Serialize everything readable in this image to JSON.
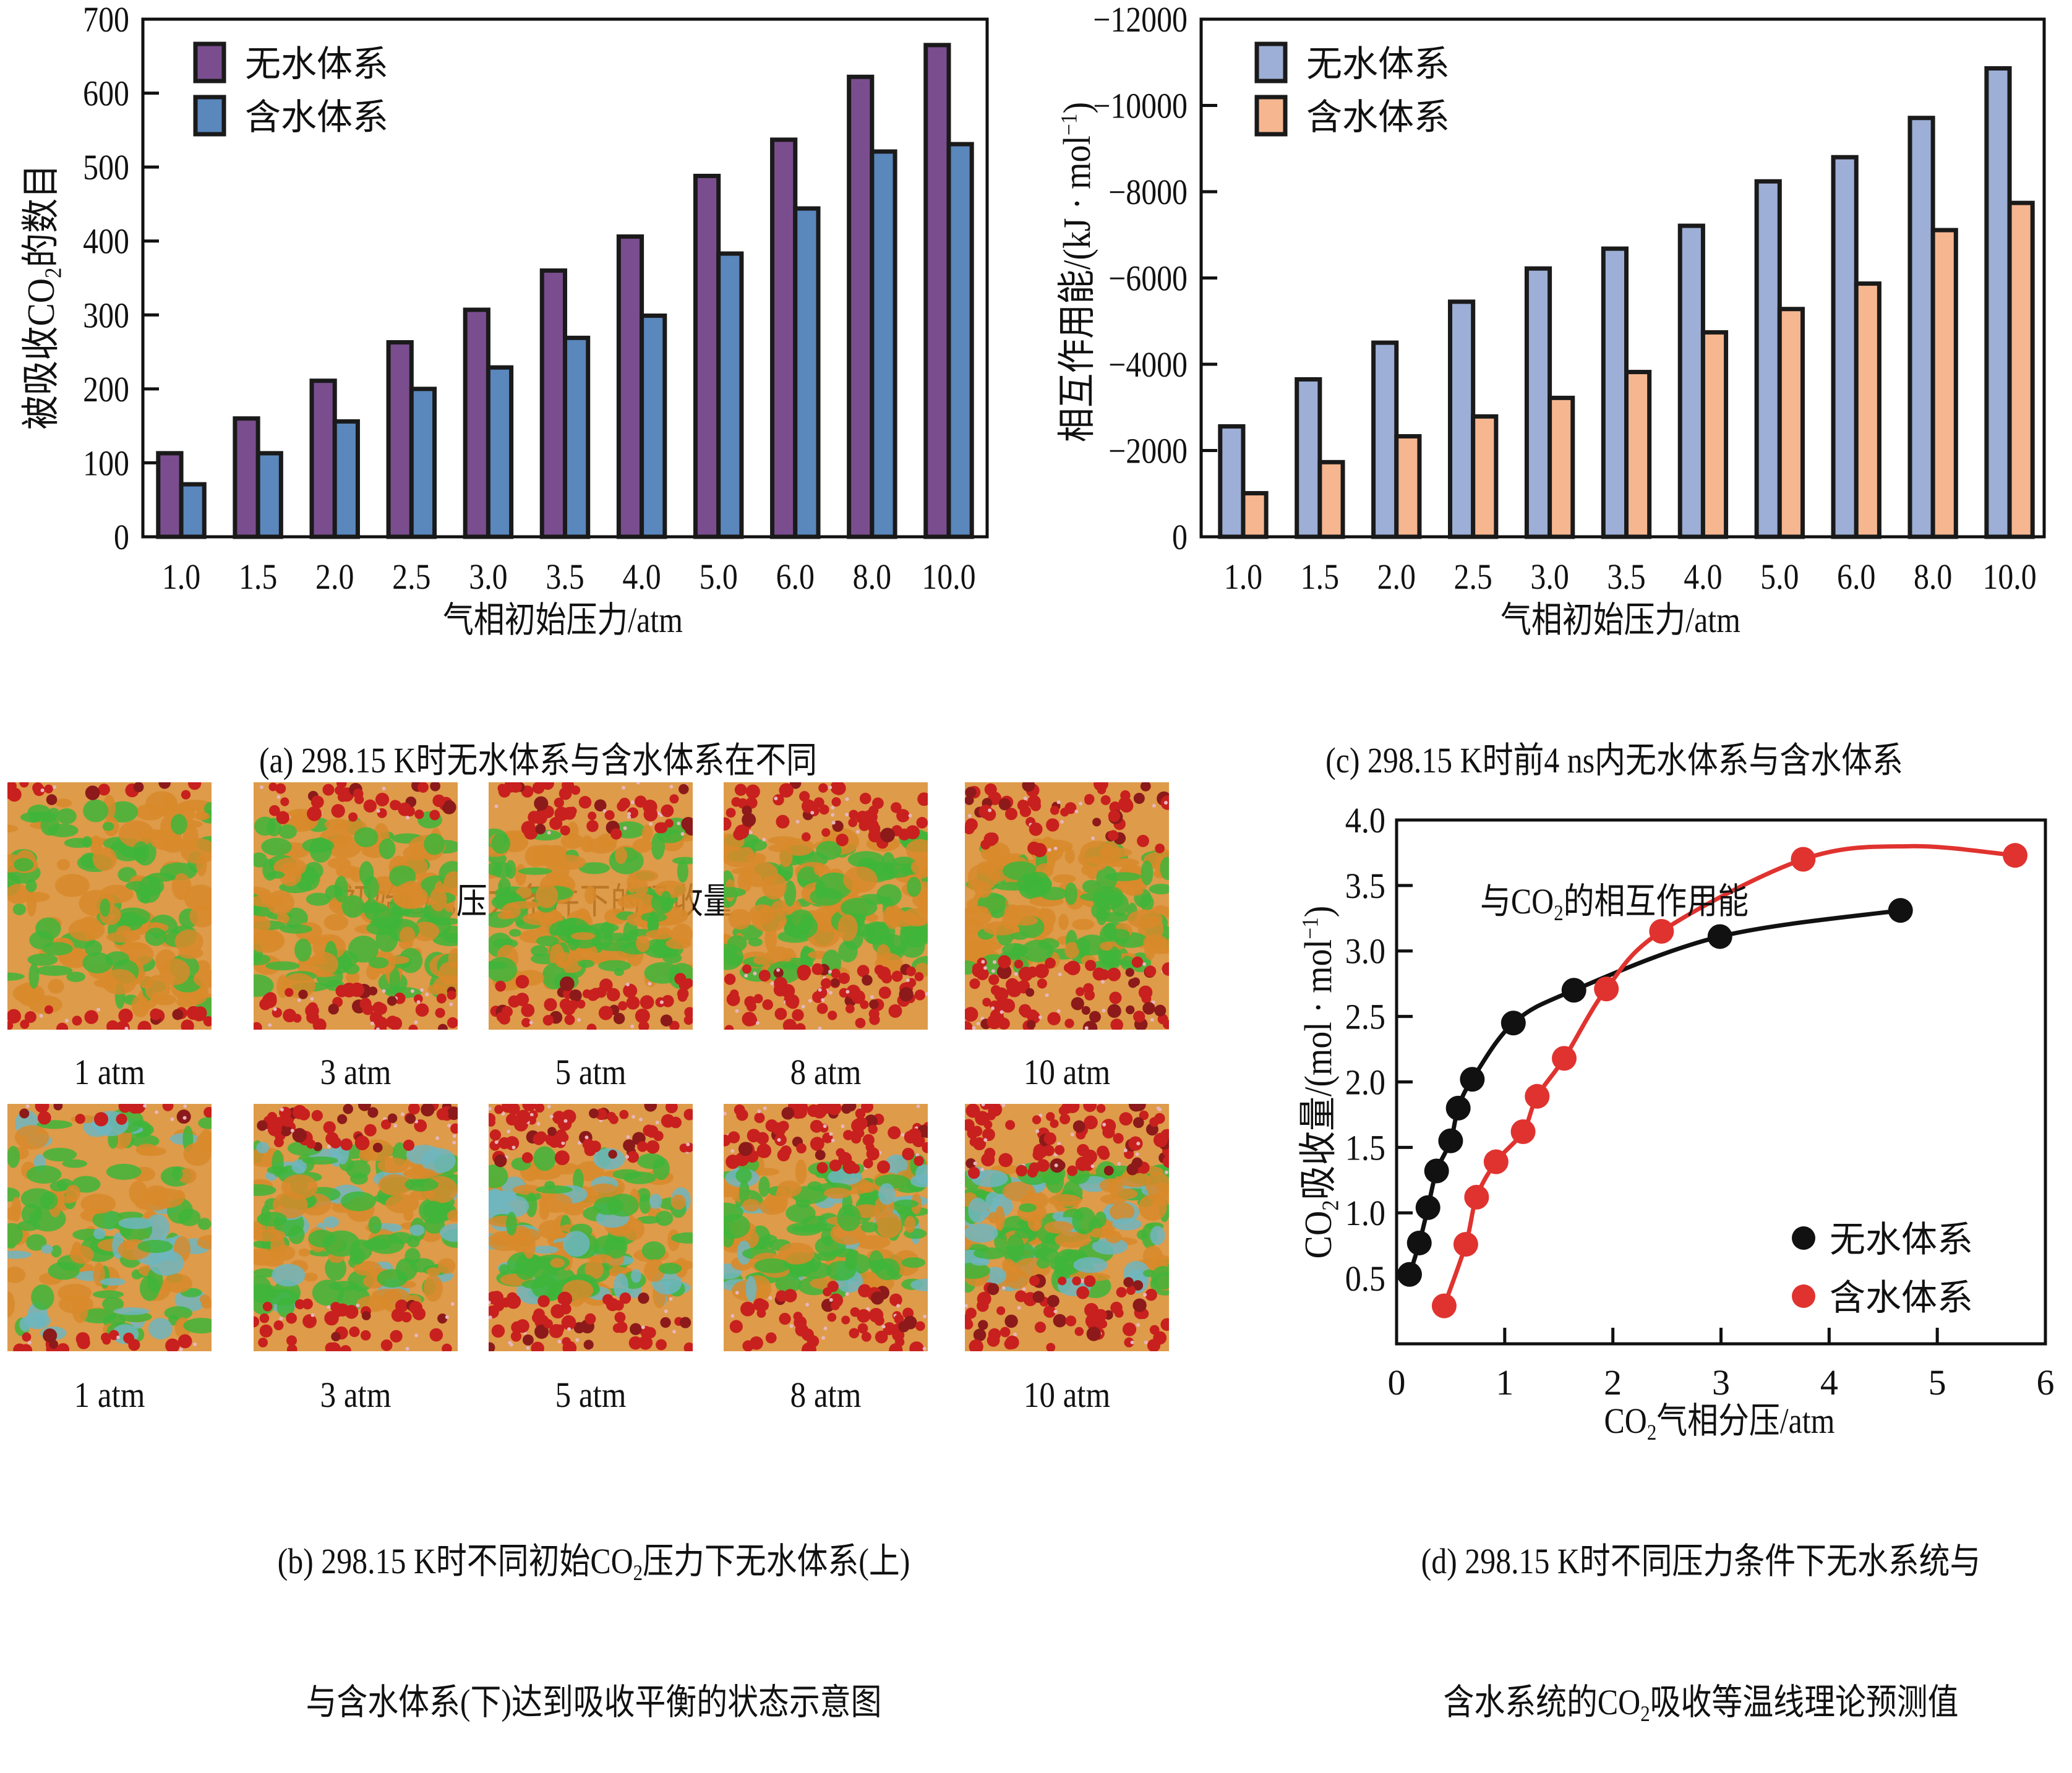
{
  "figure": {
    "panels": [
      "a",
      "b",
      "c",
      "d"
    ]
  },
  "chart_data": [
    {
      "id": "a",
      "type": "bar",
      "title": "",
      "caption_line1": "(a) 298.15 K时无水体系与含水体系在不同",
      "caption_line2_pre": "初始CO",
      "caption_line2_sub": "2",
      "caption_line2_post": "压力条件下的吸收量",
      "xlabel": "气相初始压力/atm",
      "ylabel_pre": "被吸收CO",
      "ylabel_sub": "2",
      "ylabel_post": "的数目",
      "categories": [
        "1.0",
        "1.5",
        "2.0",
        "2.5",
        "3.0",
        "3.5",
        "4.0",
        "5.0",
        "6.0",
        "8.0",
        "10.0"
      ],
      "ylim": [
        0,
        700
      ],
      "yticks": [
        0,
        100,
        200,
        300,
        400,
        500,
        600,
        700
      ],
      "ytick_labels": [
        "0",
        "100",
        "200",
        "300",
        "400",
        "500",
        "600",
        "700"
      ],
      "grid": false,
      "legend_position": "top-left",
      "series": [
        {
          "name": "无水体系",
          "color": "#7A4E8E",
          "values": [
            113,
            160,
            211,
            263,
            307,
            360,
            406,
            488,
            537,
            622,
            665
          ]
        },
        {
          "name": "含水体系",
          "color": "#5A87BC",
          "values": [
            71,
            113,
            156,
            200,
            229,
            269,
            299,
            383,
            444,
            521,
            531
          ]
        }
      ]
    },
    {
      "id": "c",
      "type": "bar",
      "title": "",
      "caption_line1": "(c) 298.15 K时前4 ns内无水体系与含水体系",
      "caption_line2_pre": "与CO",
      "caption_line2_sub": "2",
      "caption_line2_post": "的相互作用能",
      "xlabel": "气相初始压力/atm",
      "ylabel_pre": "相互作用能/(kJ · mol",
      "ylabel_sup": "−1",
      "ylabel_post": ")",
      "categories": [
        "1.0",
        "1.5",
        "2.0",
        "2.5",
        "3.0",
        "3.5",
        "4.0",
        "5.0",
        "6.0",
        "8.0",
        "10.0"
      ],
      "ylim": [
        0,
        -12000
      ],
      "yticks": [
        0,
        -2000,
        -4000,
        -6000,
        -8000,
        -10000,
        -12000
      ],
      "ytick_labels": [
        "0",
        "−2000",
        "−4000",
        "−6000",
        "−8000",
        "−10000",
        "−12000"
      ],
      "grid": false,
      "legend_position": "top-left",
      "series": [
        {
          "name": "无水体系",
          "color": "#9DAFD6",
          "values": [
            -2560,
            -3650,
            -4500,
            -5450,
            -6220,
            -6680,
            -7210,
            -8240,
            -8800,
            -9710,
            -10860
          ]
        },
        {
          "name": "含水体系",
          "color": "#F5B690",
          "values": [
            -1010,
            -1730,
            -2330,
            -2790,
            -3220,
            -3820,
            -4740,
            -5280,
            -5870,
            -7110,
            -7740
          ]
        }
      ]
    },
    {
      "id": "d",
      "type": "scatter",
      "title": "",
      "caption_line1": "(d) 298.15 K时不同压力条件下无水系统与",
      "caption_line2_pre": "含水系统的CO",
      "caption_line2_sub": "2",
      "caption_line2_post": "吸收等温线理论预测值",
      "xlabel_pre": "CO",
      "xlabel_sub": "2",
      "xlabel_post": "气相分压/atm",
      "ylabel_pre": "CO",
      "ylabel_sub": "2",
      "ylabel_mid": "吸收量/(mol · mol",
      "ylabel_sup": "−1",
      "ylabel_post": ")",
      "xlim": [
        0,
        6
      ],
      "ylim": [
        0,
        4.0
      ],
      "xticks": [
        0,
        1,
        2,
        3,
        4,
        5,
        6
      ],
      "xtick_labels": [
        "0",
        "1",
        "2",
        "3",
        "4",
        "5",
        "6"
      ],
      "yticks": [
        0.5,
        1.0,
        1.5,
        2.0,
        2.5,
        3.0,
        3.5,
        4.0
      ],
      "ytick_labels": [
        "0.5",
        "1.0",
        "1.5",
        "2.0",
        "2.5",
        "3.0",
        "3.5",
        "4.0"
      ],
      "grid": false,
      "legend_position": "bottom-right",
      "series": [
        {
          "name": "无水体系",
          "color": "#111111",
          "x": [
            0.12,
            0.21,
            0.29,
            0.37,
            0.5,
            0.57,
            0.7,
            1.08,
            1.64,
            2.99,
            4.66
          ],
          "y": [
            0.53,
            0.77,
            1.04,
            1.32,
            1.55,
            1.8,
            2.02,
            2.45,
            2.7,
            3.11,
            3.31
          ],
          "fit_curve": true
        },
        {
          "name": "含水体系",
          "color": "#E0332F",
          "x": [
            0.44,
            0.64,
            0.74,
            0.92,
            1.17,
            1.3,
            1.55,
            1.94,
            2.45,
            3.76,
            5.72
          ],
          "y": [
            0.29,
            0.76,
            1.12,
            1.39,
            1.62,
            1.89,
            2.18,
            2.71,
            3.15,
            3.7,
            3.73
          ],
          "fit_curve": true
        }
      ]
    }
  ],
  "panel_b": {
    "caption_line1_pre": "(b) 298.15 K时不同初始CO",
    "caption_line1_sub": "2",
    "caption_line1_post": "压力下无水体系(上)",
    "caption_line2": "与含水体系(下)达到吸收平衡的状态示意图",
    "rows": [
      {
        "system": "无水体系",
        "labels": [
          "1 atm",
          "3 atm",
          "5 atm",
          "8 atm",
          "10 atm"
        ],
        "co2_coverage": [
          0.15,
          0.3,
          0.38,
          0.45,
          0.5
        ]
      },
      {
        "system": "含水体系",
        "labels": [
          "1 atm",
          "3 atm",
          "5 atm",
          "8 atm",
          "10 atm"
        ],
        "co2_coverage": [
          0.12,
          0.35,
          0.42,
          0.48,
          0.52
        ]
      }
    ],
    "colors": {
      "co2": "#C8201E",
      "chain_a": "#3EB53A",
      "chain_b": "#D88A2A",
      "water": "#6FB6C0"
    }
  }
}
